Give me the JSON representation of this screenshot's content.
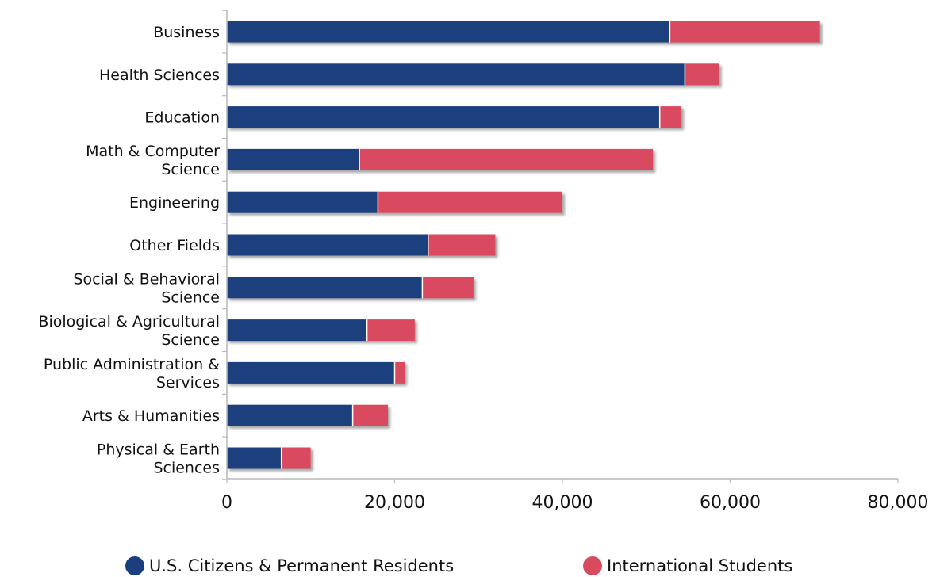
{
  "chart_data": {
    "type": "bar",
    "orientation": "horizontal",
    "stacked": true,
    "categories": [
      "Business",
      "Health Sciences",
      "Education",
      "Math & Computer Science",
      "Engineering",
      "Other Fields",
      "Social & Behavioral Science",
      "Biological & Agricultural Science",
      "Public Administration & Services",
      "Arts & Humanities",
      "Physical & Earth Sciences"
    ],
    "category_lines": [
      [
        "Business"
      ],
      [
        "Health Sciences"
      ],
      [
        "Education"
      ],
      [
        "Math & Computer",
        "Science"
      ],
      [
        "Engineering"
      ],
      [
        "Other Fields"
      ],
      [
        "Social & Behavioral",
        "Science"
      ],
      [
        "Biological & Agricultural",
        "Science"
      ],
      [
        "Public Administration &",
        "Services"
      ],
      [
        "Arts & Humanities"
      ],
      [
        "Physical & Earth",
        "Sciences"
      ]
    ],
    "series": [
      {
        "name": "U.S. Citizens & Permanent Residents",
        "color": "#1b3f7e",
        "values": [
          52800,
          54600,
          51600,
          15800,
          18000,
          24000,
          23300,
          16700,
          20000,
          15000,
          6500
        ]
      },
      {
        "name": "International Students",
        "color": "#d94a5e",
        "values": [
          17900,
          4100,
          2600,
          35000,
          22000,
          8000,
          6100,
          5700,
          1200,
          4200,
          3500
        ]
      }
    ],
    "xlim": [
      0,
      80000
    ],
    "xticks": [
      0,
      20000,
      40000,
      60000,
      80000
    ],
    "xtick_labels": [
      "0",
      "20,000",
      "40,000",
      "60,000",
      "80,000"
    ],
    "grid": false,
    "legend_position": "bottom",
    "title": "",
    "xlabel": "",
    "ylabel": ""
  }
}
